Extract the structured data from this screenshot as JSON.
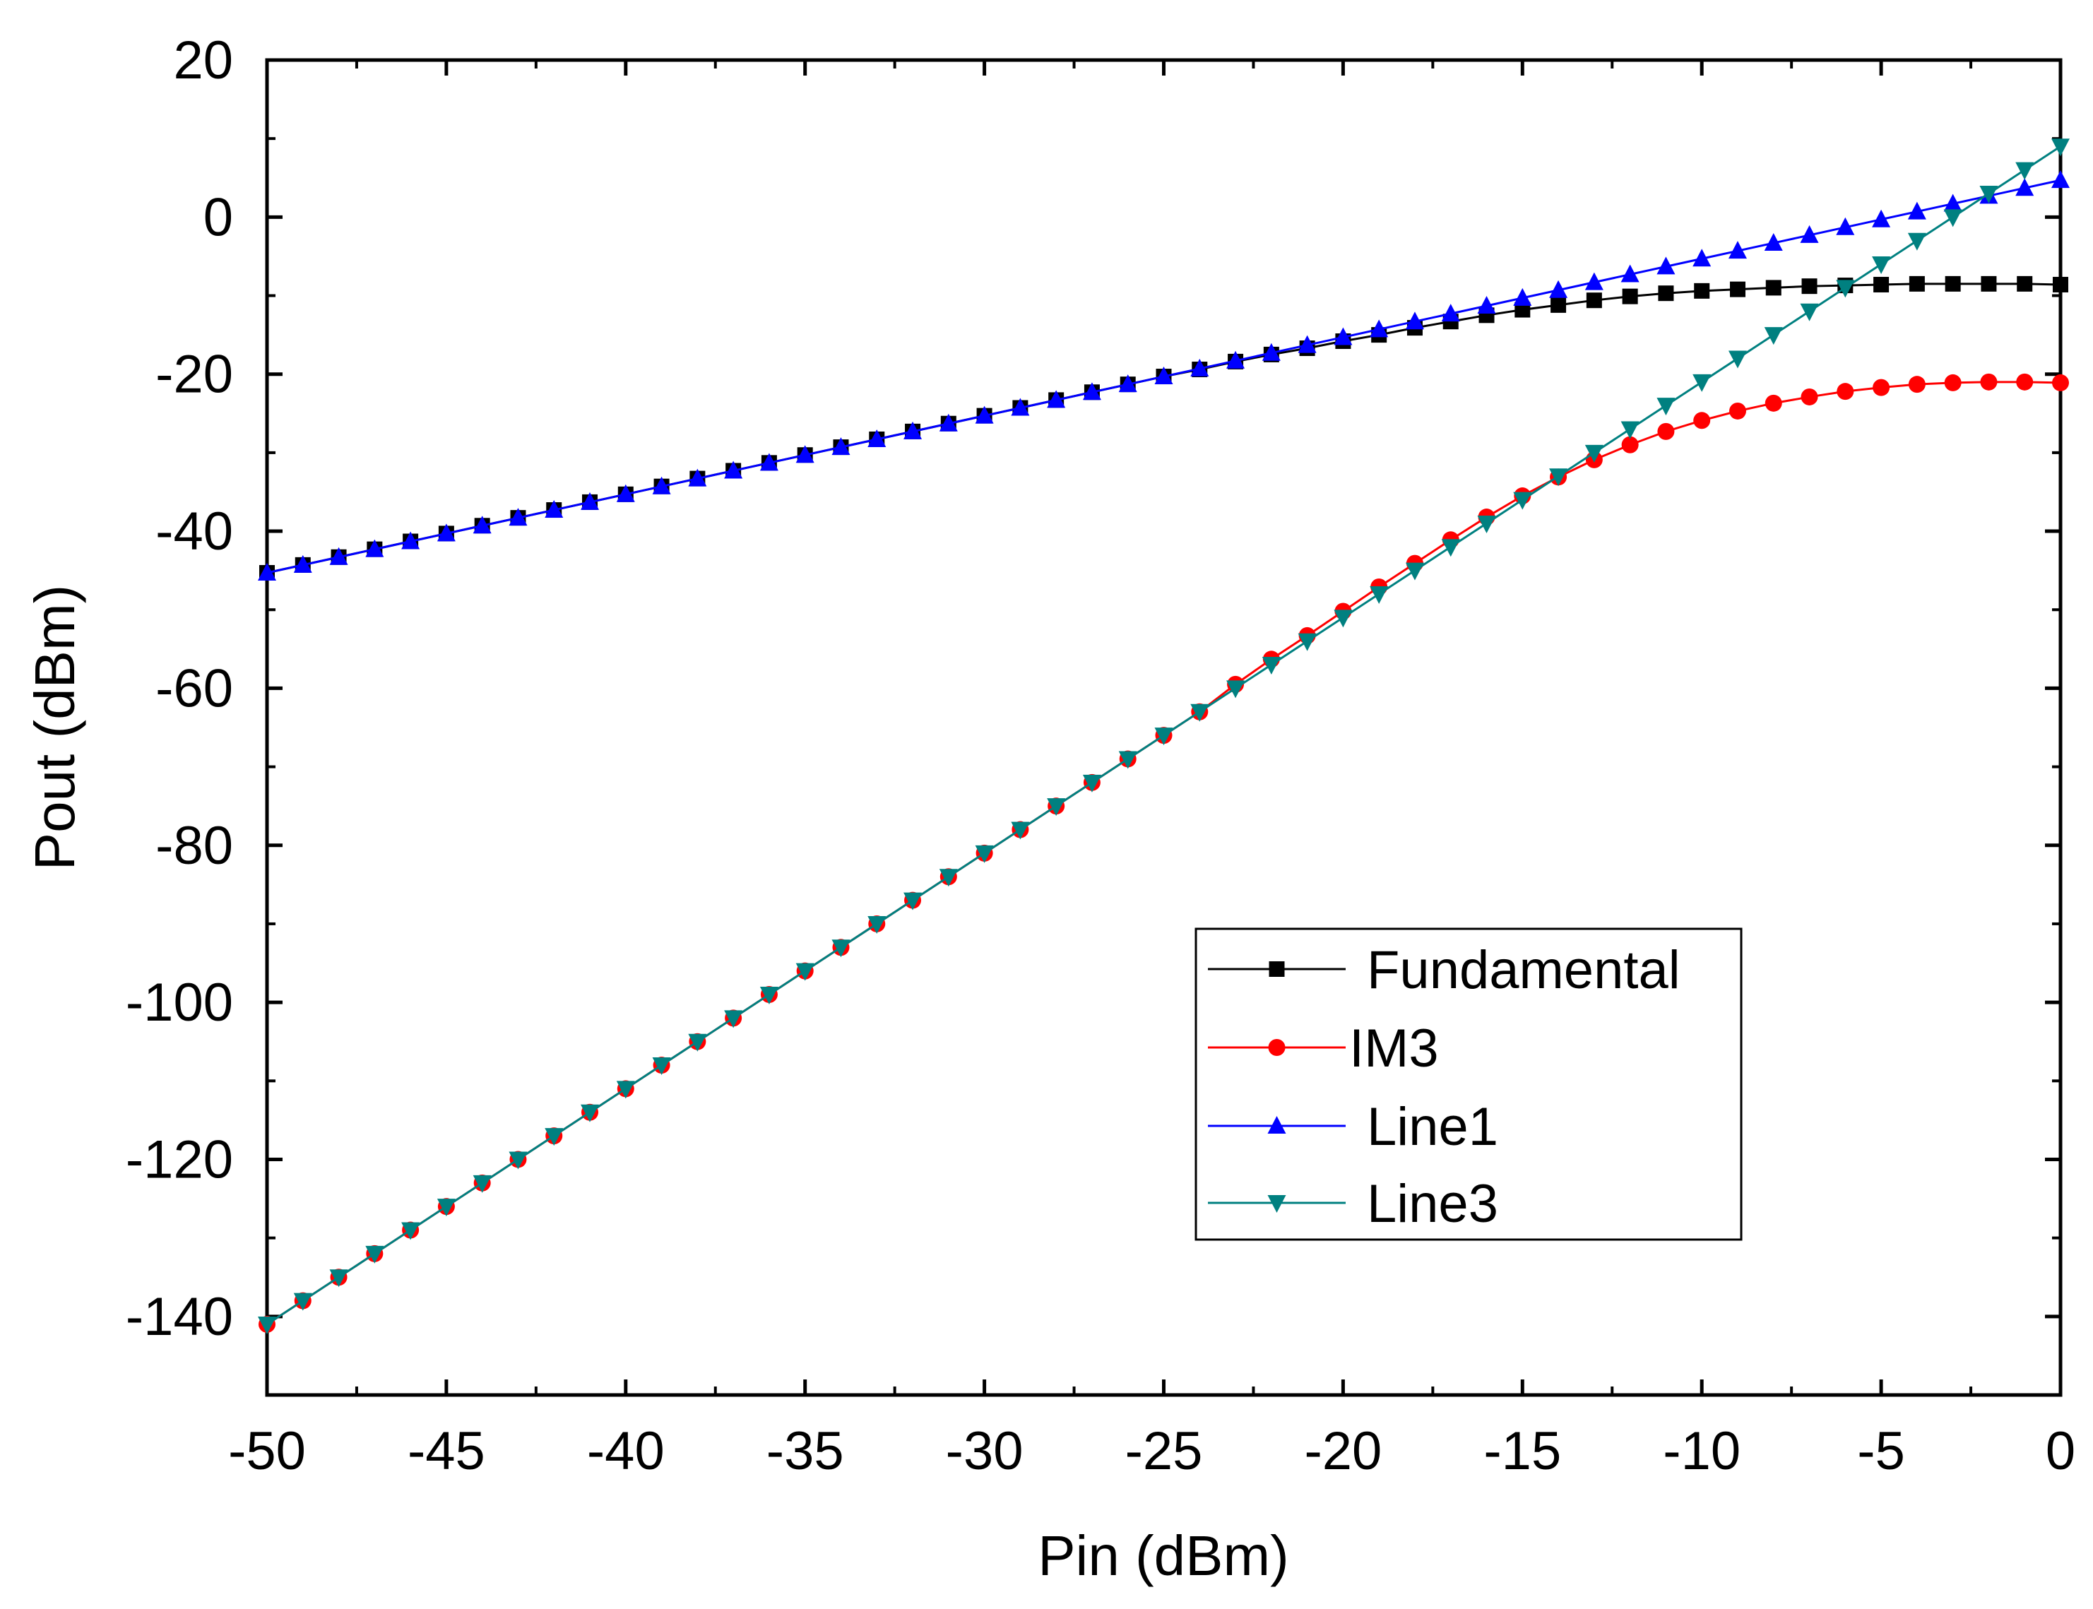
{
  "chart_data": {
    "type": "line",
    "title": "",
    "xlabel": "Pin (dBm)",
    "ylabel": "Pout (dBm)",
    "xlim": [
      -50,
      0
    ],
    "ylim": [
      -150,
      20
    ],
    "x_ticks": [
      -50,
      -45,
      -40,
      -35,
      -30,
      -25,
      -20,
      -15,
      -10,
      -5,
      0
    ],
    "x_tick_labels": [
      "-50",
      "-45",
      "-40",
      "-35",
      "-30",
      "-25",
      "-20",
      "-15",
      "-10",
      "-5",
      "0"
    ],
    "y_ticks": [
      -140,
      -120,
      -100,
      -80,
      -60,
      -40,
      -20,
      0,
      20
    ],
    "y_tick_labels": [
      "-140",
      "-120",
      "-100",
      "-80",
      "-60",
      "-40",
      "-20",
      "0",
      "20"
    ],
    "legend_position": "lower-right",
    "x": [
      -50,
      -49,
      -48,
      -47,
      -46,
      -45,
      -44,
      -43,
      -42,
      -41,
      -40,
      -39,
      -38,
      -37,
      -36,
      -35,
      -34,
      -33,
      -32,
      -31,
      -30,
      -29,
      -28,
      -27,
      -26,
      -25,
      -24,
      -23,
      -22,
      -21,
      -20,
      -19,
      -18,
      -17,
      -16,
      -15,
      -14,
      -13,
      -12,
      -11,
      -10,
      -9,
      -8,
      -7,
      -6,
      -5,
      -4,
      -3,
      -2,
      -1,
      0
    ],
    "series": [
      {
        "name": "Fundamental",
        "color": "#000000",
        "marker": "square",
        "values": [
          -45.3,
          -44.3,
          -43.3,
          -42.3,
          -41.3,
          -40.3,
          -39.3,
          -38.3,
          -37.3,
          -36.3,
          -35.3,
          -34.3,
          -33.3,
          -32.3,
          -31.3,
          -30.3,
          -29.3,
          -28.3,
          -27.3,
          -26.3,
          -25.3,
          -24.3,
          -23.3,
          -22.3,
          -21.3,
          -20.3,
          -19.4,
          -18.4,
          -17.5,
          -16.7,
          -15.8,
          -15.0,
          -14.1,
          -13.3,
          -12.5,
          -11.8,
          -11.2,
          -10.6,
          -10.1,
          -9.7,
          -9.4,
          -9.2,
          -9.0,
          -8.8,
          -8.7,
          -8.6,
          -8.5,
          -8.5,
          -8.5,
          -8.5,
          -8.6
        ]
      },
      {
        "name": "IM3",
        "color": "#ff0000",
        "marker": "circle",
        "values": [
          -141,
          -138,
          -135,
          -132,
          -129,
          -126,
          -123,
          -120,
          -117,
          -114,
          -111,
          -108,
          -105,
          -102,
          -99,
          -96,
          -93,
          -90,
          -87,
          -84,
          -81,
          -78,
          -75,
          -72,
          -69,
          -66,
          -63,
          -59.5,
          -56.3,
          -53.3,
          -50.2,
          -47.1,
          -44.1,
          -41.1,
          -38.2,
          -35.5,
          -33.1,
          -30.9,
          -29.0,
          -27.3,
          -25.9,
          -24.7,
          -23.7,
          -22.9,
          -22.2,
          -21.7,
          -21.3,
          -21.1,
          -21.0,
          -21.0,
          -21.1
        ]
      },
      {
        "name": "Line1",
        "color": "#0000ff",
        "marker": "triangle-up",
        "values": [
          -45.3,
          -44.3,
          -43.3,
          -42.3,
          -41.3,
          -40.3,
          -39.3,
          -38.3,
          -37.3,
          -36.3,
          -35.3,
          -34.3,
          -33.3,
          -32.3,
          -31.3,
          -30.3,
          -29.3,
          -28.3,
          -27.3,
          -26.3,
          -25.3,
          -24.3,
          -23.3,
          -22.3,
          -21.3,
          -20.3,
          -19.3,
          -18.3,
          -17.3,
          -16.3,
          -15.3,
          -14.3,
          -13.3,
          -12.3,
          -11.3,
          -10.3,
          -9.3,
          -8.3,
          -7.3,
          -6.3,
          -5.3,
          -4.3,
          -3.3,
          -2.3,
          -1.3,
          -0.3,
          0.7,
          1.7,
          2.7,
          3.7,
          4.7
        ]
      },
      {
        "name": "Line3",
        "color": "#008080",
        "marker": "triangle-down",
        "values": [
          -141,
          -138,
          -135,
          -132,
          -129,
          -126,
          -123,
          -120,
          -117,
          -114,
          -111,
          -108,
          -105,
          -102,
          -99,
          -96,
          -93,
          -90,
          -87,
          -84,
          -81,
          -78,
          -75,
          -72,
          -69,
          -66,
          -63,
          -60,
          -57,
          -54,
          -51,
          -48,
          -45,
          -42,
          -39,
          -36,
          -33,
          -30,
          -27,
          -24,
          -21,
          -18,
          -15,
          -12,
          -9,
          -6,
          -3,
          0,
          3,
          6,
          9
        ]
      }
    ]
  }
}
